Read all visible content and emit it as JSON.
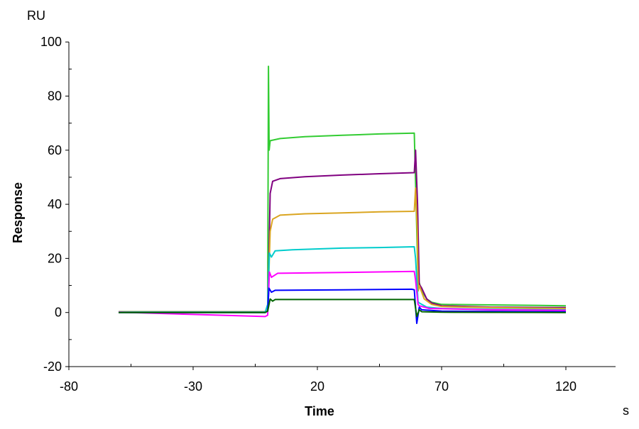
{
  "chart_data": {
    "type": "line",
    "xlabel": "Time",
    "xunit": "s",
    "ylabel": "Response",
    "yunit": "RU",
    "xlim": [
      -80,
      140
    ],
    "ylim": [
      -20,
      100
    ],
    "xticks": [
      "-80",
      "-30",
      "20",
      "70",
      "120"
    ],
    "yticks": [
      "-20",
      "0",
      "20",
      "40",
      "60",
      "80",
      "100"
    ],
    "grid": false,
    "series": [
      {
        "color": "#33cc33",
        "points": [
          [
            -60,
            0.3
          ],
          [
            -1,
            0.3
          ],
          [
            0,
            0.5
          ],
          [
            0.3,
            91
          ],
          [
            0.6,
            60
          ],
          [
            1,
            63.5
          ],
          [
            5,
            64.3
          ],
          [
            15,
            65
          ],
          [
            30,
            65.5
          ],
          [
            45,
            66
          ],
          [
            59,
            66.3
          ],
          [
            60.5,
            12
          ],
          [
            61,
            11
          ],
          [
            62,
            8
          ],
          [
            64,
            5
          ],
          [
            66,
            3.8
          ],
          [
            70,
            3
          ],
          [
            90,
            2.8
          ],
          [
            120,
            2.5
          ]
        ]
      },
      {
        "color": "#800080",
        "points": [
          [
            -60,
            0.2
          ],
          [
            -1,
            0.2
          ],
          [
            0,
            2
          ],
          [
            0.5,
            20
          ],
          [
            1,
            44
          ],
          [
            2,
            48.5
          ],
          [
            5,
            49.5
          ],
          [
            15,
            50.2
          ],
          [
            30,
            50.8
          ],
          [
            45,
            51.3
          ],
          [
            59,
            51.7
          ],
          [
            59.5,
            60
          ],
          [
            60.3,
            40
          ],
          [
            61,
            10.5
          ],
          [
            62,
            9
          ],
          [
            64,
            5
          ],
          [
            66,
            3.5
          ],
          [
            70,
            2.5
          ],
          [
            90,
            2
          ],
          [
            120,
            1.8
          ]
        ]
      },
      {
        "color": "#daa520",
        "points": [
          [
            -60,
            0.2
          ],
          [
            -1,
            0.2
          ],
          [
            0,
            2
          ],
          [
            0.5,
            15
          ],
          [
            1,
            30
          ],
          [
            2,
            34.5
          ],
          [
            5,
            36
          ],
          [
            15,
            36.5
          ],
          [
            30,
            36.8
          ],
          [
            45,
            37.2
          ],
          [
            59,
            37.4
          ],
          [
            59.5,
            46
          ],
          [
            60.2,
            30
          ],
          [
            60.6,
            8
          ],
          [
            61,
            10
          ],
          [
            63,
            5
          ],
          [
            66,
            3
          ],
          [
            70,
            2.2
          ],
          [
            90,
            1.8
          ],
          [
            120,
            1.5
          ]
        ]
      },
      {
        "color": "#00cccc",
        "points": [
          [
            -60,
            0.1
          ],
          [
            -1,
            0.1
          ],
          [
            0,
            3
          ],
          [
            0.7,
            22
          ],
          [
            1.5,
            20.5
          ],
          [
            3,
            22.8
          ],
          [
            10,
            23.2
          ],
          [
            30,
            23.8
          ],
          [
            45,
            24
          ],
          [
            59,
            24.3
          ],
          [
            59.5,
            20
          ],
          [
            60.5,
            4
          ],
          [
            61,
            3.5
          ],
          [
            64,
            2
          ],
          [
            70,
            1.5
          ],
          [
            90,
            1.2
          ],
          [
            120,
            1
          ]
        ]
      },
      {
        "color": "#ff00ff",
        "points": [
          [
            -60,
            0.1
          ],
          [
            -1,
            -1.5
          ],
          [
            0,
            -1
          ],
          [
            0.7,
            15
          ],
          [
            1.5,
            13
          ],
          [
            4,
            14.5
          ],
          [
            30,
            14.8
          ],
          [
            45,
            15
          ],
          [
            59,
            15.2
          ],
          [
            59.5,
            12
          ],
          [
            60.5,
            3
          ],
          [
            61,
            2.5
          ],
          [
            65,
            1.5
          ],
          [
            90,
            1
          ],
          [
            120,
            0.8
          ]
        ]
      },
      {
        "color": "#0000ff",
        "points": [
          [
            -60,
            0
          ],
          [
            -1,
            0
          ],
          [
            0,
            0.5
          ],
          [
            0.5,
            9
          ],
          [
            1.5,
            7.5
          ],
          [
            3,
            8.2
          ],
          [
            30,
            8.4
          ],
          [
            58,
            8.6
          ],
          [
            59,
            8.4
          ],
          [
            60,
            -4
          ],
          [
            61,
            2
          ],
          [
            62,
            1
          ],
          [
            70,
            0.5
          ],
          [
            120,
            0.3
          ]
        ]
      },
      {
        "color": "#006400",
        "points": [
          [
            -60,
            0
          ],
          [
            -1,
            0
          ],
          [
            0,
            0.5
          ],
          [
            1,
            5
          ],
          [
            2,
            4.2
          ],
          [
            3,
            4.8
          ],
          [
            30,
            4.8
          ],
          [
            59,
            4.8
          ],
          [
            60,
            -1.5
          ],
          [
            61,
            1
          ],
          [
            62,
            0.3
          ],
          [
            70,
            0.1
          ],
          [
            120,
            0
          ]
        ]
      }
    ]
  }
}
